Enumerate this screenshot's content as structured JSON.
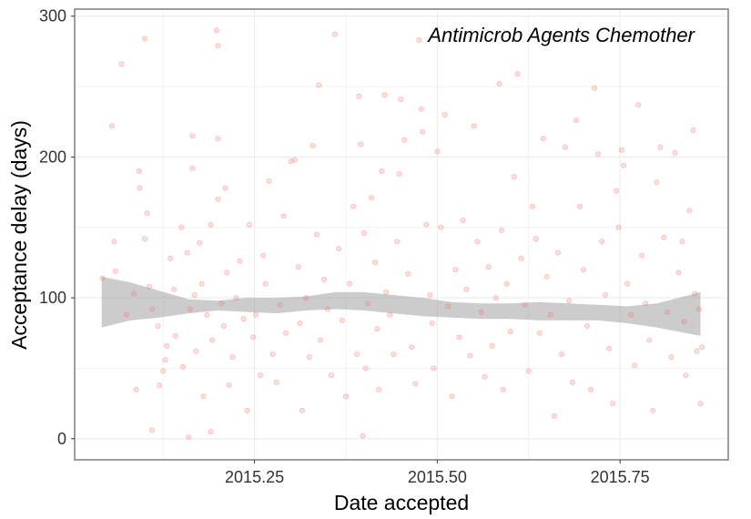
{
  "chart_data": {
    "type": "scatter",
    "title": "",
    "annotation": "Antimicrob Agents Chemother",
    "xlabel": "Date accepted",
    "ylabel": "Acceptance delay (days)",
    "xlim": [
      2015.004,
      2015.898
    ],
    "ylim": [
      -15,
      305
    ],
    "x_ticks": [
      2015.25,
      2015.5,
      2015.75
    ],
    "x_tick_labels": [
      "2015.25",
      "2015.50",
      "2015.75"
    ],
    "y_ticks": [
      0,
      100,
      200,
      300
    ],
    "y_tick_labels": [
      "0",
      "100",
      "200",
      "300"
    ],
    "grid": true,
    "legend": "none",
    "colors": {
      "points": "#f8766d",
      "smooth_band": "#999999",
      "panel_border": "#7f7f7f",
      "grid": "#ebebeb"
    },
    "smooth": {
      "x": [
        2015.041,
        2015.08,
        2015.12,
        2015.16,
        2015.2,
        2015.24,
        2015.28,
        2015.32,
        2015.36,
        2015.4,
        2015.44,
        2015.48,
        2015.52,
        2015.56,
        2015.6,
        2015.64,
        2015.68,
        2015.72,
        2015.76,
        2015.8,
        2015.86
      ],
      "lower": [
        79,
        84,
        86,
        89,
        91,
        90,
        89,
        91,
        92,
        91,
        89,
        87,
        86,
        85,
        85,
        84,
        84,
        84,
        82,
        79,
        73
      ],
      "upper": [
        115,
        111,
        105,
        99,
        98,
        100,
        100,
        101,
        104,
        104,
        102,
        100,
        97,
        96,
        96,
        97,
        96,
        95,
        94,
        96,
        104
      ]
    },
    "points": [
      {
        "x": 2015.042,
        "y": 114
      },
      {
        "x": 2015.055,
        "y": 222
      },
      {
        "x": 2015.06,
        "y": 119
      },
      {
        "x": 2015.058,
        "y": 140
      },
      {
        "x": 2015.068,
        "y": 266
      },
      {
        "x": 2015.075,
        "y": 88
      },
      {
        "x": 2015.085,
        "y": 103
      },
      {
        "x": 2015.088,
        "y": 35
      },
      {
        "x": 2015.092,
        "y": 190
      },
      {
        "x": 2015.093,
        "y": 178
      },
      {
        "x": 2015.1,
        "y": 284
      },
      {
        "x": 2015.1,
        "y": 142
      },
      {
        "x": 2015.103,
        "y": 160
      },
      {
        "x": 2015.106,
        "y": 108
      },
      {
        "x": 2015.11,
        "y": 92
      },
      {
        "x": 2015.11,
        "y": 6
      },
      {
        "x": 2015.118,
        "y": 80
      },
      {
        "x": 2015.12,
        "y": 38
      },
      {
        "x": 2015.125,
        "y": 48
      },
      {
        "x": 2015.128,
        "y": 56
      },
      {
        "x": 2015.13,
        "y": 66
      },
      {
        "x": 2015.135,
        "y": 128
      },
      {
        "x": 2015.14,
        "y": 106
      },
      {
        "x": 2015.142,
        "y": 73
      },
      {
        "x": 2015.15,
        "y": 150
      },
      {
        "x": 2015.152,
        "y": 51
      },
      {
        "x": 2015.158,
        "y": 132
      },
      {
        "x": 2015.16,
        "y": 1
      },
      {
        "x": 2015.162,
        "y": 92
      },
      {
        "x": 2015.165,
        "y": 215
      },
      {
        "x": 2015.165,
        "y": 192
      },
      {
        "x": 2015.168,
        "y": 102
      },
      {
        "x": 2015.17,
        "y": 62
      },
      {
        "x": 2015.175,
        "y": 139
      },
      {
        "x": 2015.178,
        "y": 110
      },
      {
        "x": 2015.18,
        "y": 30
      },
      {
        "x": 2015.185,
        "y": 88
      },
      {
        "x": 2015.19,
        "y": 152
      },
      {
        "x": 2015.19,
        "y": 5
      },
      {
        "x": 2015.192,
        "y": 70
      },
      {
        "x": 2015.198,
        "y": 290
      },
      {
        "x": 2015.2,
        "y": 279
      },
      {
        "x": 2015.2,
        "y": 213
      },
      {
        "x": 2015.2,
        "y": 170
      },
      {
        "x": 2015.205,
        "y": 96
      },
      {
        "x": 2015.208,
        "y": 80
      },
      {
        "x": 2015.21,
        "y": 178
      },
      {
        "x": 2015.212,
        "y": 118
      },
      {
        "x": 2015.215,
        "y": 38
      },
      {
        "x": 2015.22,
        "y": 58
      },
      {
        "x": 2015.225,
        "y": 100
      },
      {
        "x": 2015.23,
        "y": 126
      },
      {
        "x": 2015.235,
        "y": 85
      },
      {
        "x": 2015.24,
        "y": 20
      },
      {
        "x": 2015.243,
        "y": 152
      },
      {
        "x": 2015.248,
        "y": 72
      },
      {
        "x": 2015.252,
        "y": 88
      },
      {
        "x": 2015.258,
        "y": 45
      },
      {
        "x": 2015.262,
        "y": 130
      },
      {
        "x": 2015.265,
        "y": 110
      },
      {
        "x": 2015.27,
        "y": 183
      },
      {
        "x": 2015.275,
        "y": 60
      },
      {
        "x": 2015.28,
        "y": 40
      },
      {
        "x": 2015.285,
        "y": 95
      },
      {
        "x": 2015.29,
        "y": 158
      },
      {
        "x": 2015.293,
        "y": 75
      },
      {
        "x": 2015.3,
        "y": 197
      },
      {
        "x": 2015.305,
        "y": 198
      },
      {
        "x": 2015.31,
        "y": 122
      },
      {
        "x": 2015.312,
        "y": 82
      },
      {
        "x": 2015.315,
        "y": 20
      },
      {
        "x": 2015.32,
        "y": 100
      },
      {
        "x": 2015.325,
        "y": 58
      },
      {
        "x": 2015.33,
        "y": 208
      },
      {
        "x": 2015.335,
        "y": 145
      },
      {
        "x": 2015.338,
        "y": 251
      },
      {
        "x": 2015.34,
        "y": 70
      },
      {
        "x": 2015.345,
        "y": 113
      },
      {
        "x": 2015.35,
        "y": 92
      },
      {
        "x": 2015.355,
        "y": 45
      },
      {
        "x": 2015.36,
        "y": 287
      },
      {
        "x": 2015.365,
        "y": 135
      },
      {
        "x": 2015.37,
        "y": 84
      },
      {
        "x": 2015.375,
        "y": 30
      },
      {
        "x": 2015.38,
        "y": 110
      },
      {
        "x": 2015.385,
        "y": 165
      },
      {
        "x": 2015.39,
        "y": 60
      },
      {
        "x": 2015.393,
        "y": 243
      },
      {
        "x": 2015.395,
        "y": 209
      },
      {
        "x": 2015.398,
        "y": 2
      },
      {
        "x": 2015.4,
        "y": 146
      },
      {
        "x": 2015.402,
        "y": 50
      },
      {
        "x": 2015.405,
        "y": 96
      },
      {
        "x": 2015.41,
        "y": 171
      },
      {
        "x": 2015.415,
        "y": 125
      },
      {
        "x": 2015.418,
        "y": 78
      },
      {
        "x": 2015.42,
        "y": 35
      },
      {
        "x": 2015.424,
        "y": 190
      },
      {
        "x": 2015.428,
        "y": 244
      },
      {
        "x": 2015.43,
        "y": 104
      },
      {
        "x": 2015.435,
        "y": 88
      },
      {
        "x": 2015.44,
        "y": 60
      },
      {
        "x": 2015.445,
        "y": 140
      },
      {
        "x": 2015.448,
        "y": 188
      },
      {
        "x": 2015.45,
        "y": 241
      },
      {
        "x": 2015.455,
        "y": 212
      },
      {
        "x": 2015.46,
        "y": 117
      },
      {
        "x": 2015.465,
        "y": 65
      },
      {
        "x": 2015.47,
        "y": 39
      },
      {
        "x": 2015.475,
        "y": 283
      },
      {
        "x": 2015.478,
        "y": 234
      },
      {
        "x": 2015.48,
        "y": 218
      },
      {
        "x": 2015.485,
        "y": 152
      },
      {
        "x": 2015.49,
        "y": 102
      },
      {
        "x": 2015.493,
        "y": 82
      },
      {
        "x": 2015.495,
        "y": 50
      },
      {
        "x": 2015.5,
        "y": 204
      },
      {
        "x": 2015.505,
        "y": 150
      },
      {
        "x": 2015.51,
        "y": 230
      },
      {
        "x": 2015.515,
        "y": 94
      },
      {
        "x": 2015.52,
        "y": 30
      },
      {
        "x": 2015.525,
        "y": 120
      },
      {
        "x": 2015.53,
        "y": 72
      },
      {
        "x": 2015.535,
        "y": 155
      },
      {
        "x": 2015.54,
        "y": 106
      },
      {
        "x": 2015.545,
        "y": 59
      },
      {
        "x": 2015.55,
        "y": 222
      },
      {
        "x": 2015.555,
        "y": 140
      },
      {
        "x": 2015.56,
        "y": 90
      },
      {
        "x": 2015.565,
        "y": 44
      },
      {
        "x": 2015.57,
        "y": 122
      },
      {
        "x": 2015.575,
        "y": 66
      },
      {
        "x": 2015.58,
        "y": 100
      },
      {
        "x": 2015.585,
        "y": 252
      },
      {
        "x": 2015.588,
        "y": 148
      },
      {
        "x": 2015.59,
        "y": 35
      },
      {
        "x": 2015.595,
        "y": 110
      },
      {
        "x": 2015.6,
        "y": 76
      },
      {
        "x": 2015.605,
        "y": 186
      },
      {
        "x": 2015.61,
        "y": 259
      },
      {
        "x": 2015.615,
        "y": 128
      },
      {
        "x": 2015.62,
        "y": 95
      },
      {
        "x": 2015.625,
        "y": 48
      },
      {
        "x": 2015.63,
        "y": 165
      },
      {
        "x": 2015.635,
        "y": 142
      },
      {
        "x": 2015.64,
        "y": 75
      },
      {
        "x": 2015.645,
        "y": 213
      },
      {
        "x": 2015.65,
        "y": 115
      },
      {
        "x": 2015.655,
        "y": 88
      },
      {
        "x": 2015.66,
        "y": 16
      },
      {
        "x": 2015.665,
        "y": 132
      },
      {
        "x": 2015.67,
        "y": 60
      },
      {
        "x": 2015.675,
        "y": 207
      },
      {
        "x": 2015.68,
        "y": 98
      },
      {
        "x": 2015.685,
        "y": 40
      },
      {
        "x": 2015.69,
        "y": 226
      },
      {
        "x": 2015.695,
        "y": 165
      },
      {
        "x": 2015.7,
        "y": 120
      },
      {
        "x": 2015.705,
        "y": 80
      },
      {
        "x": 2015.71,
        "y": 35
      },
      {
        "x": 2015.715,
        "y": 249
      },
      {
        "x": 2015.72,
        "y": 202
      },
      {
        "x": 2015.725,
        "y": 140
      },
      {
        "x": 2015.73,
        "y": 102
      },
      {
        "x": 2015.735,
        "y": 64
      },
      {
        "x": 2015.74,
        "y": 25
      },
      {
        "x": 2015.745,
        "y": 176
      },
      {
        "x": 2015.748,
        "y": 150
      },
      {
        "x": 2015.752,
        "y": 205
      },
      {
        "x": 2015.755,
        "y": 194
      },
      {
        "x": 2015.76,
        "y": 110
      },
      {
        "x": 2015.765,
        "y": 88
      },
      {
        "x": 2015.77,
        "y": 52
      },
      {
        "x": 2015.775,
        "y": 237
      },
      {
        "x": 2015.78,
        "y": 130
      },
      {
        "x": 2015.785,
        "y": 96
      },
      {
        "x": 2015.79,
        "y": 70
      },
      {
        "x": 2015.795,
        "y": 20
      },
      {
        "x": 2015.8,
        "y": 182
      },
      {
        "x": 2015.805,
        "y": 207
      },
      {
        "x": 2015.81,
        "y": 143
      },
      {
        "x": 2015.815,
        "y": 90
      },
      {
        "x": 2015.82,
        "y": 58
      },
      {
        "x": 2015.825,
        "y": 203
      },
      {
        "x": 2015.83,
        "y": 118
      },
      {
        "x": 2015.835,
        "y": 140
      },
      {
        "x": 2015.838,
        "y": 83
      },
      {
        "x": 2015.84,
        "y": 45
      },
      {
        "x": 2015.845,
        "y": 162
      },
      {
        "x": 2015.85,
        "y": 219
      },
      {
        "x": 2015.852,
        "y": 103
      },
      {
        "x": 2015.855,
        "y": 62
      },
      {
        "x": 2015.858,
        "y": 92
      },
      {
        "x": 2015.86,
        "y": 25
      },
      {
        "x": 2015.862,
        "y": 65
      }
    ]
  }
}
